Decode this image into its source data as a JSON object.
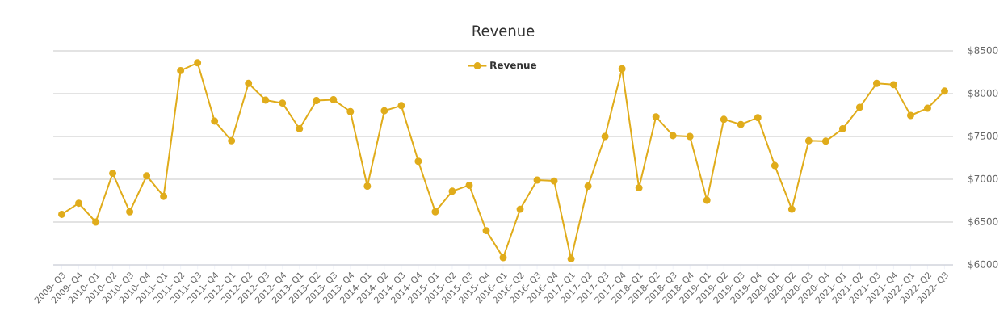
{
  "chart_data": {
    "type": "line",
    "title": "Revenue",
    "categories": [
      "2009- Q3",
      "2009- Q4",
      "2010- Q1",
      "2010- Q2",
      "2010- Q3",
      "2010- Q4",
      "2011- Q1",
      "2011- Q2",
      "2011- Q3",
      "2011- Q4",
      "2012- Q1",
      "2012- Q2",
      "2012- Q3",
      "2012- Q4",
      "2013- Q1",
      "2013- Q2",
      "2013- Q3",
      "2013- Q4",
      "2014- Q1",
      "2014- Q2",
      "2014- Q3",
      "2014- Q4",
      "2015- Q1",
      "2015- Q2",
      "2015- Q3",
      "2015- Q4",
      "2016- Q1",
      "2016- Q2",
      "2016- Q3",
      "2016- Q4",
      "2017- Q1",
      "2017- Q2",
      "2017- Q3",
      "2017- Q4",
      "2018- Q1",
      "2018- Q2",
      "2018- Q3",
      "2018- Q4",
      "2019- Q1",
      "2019- Q2",
      "2019- Q3",
      "2019- Q4",
      "2020- Q1",
      "2020- Q2",
      "2020- Q3",
      "2020- Q4",
      "2021- Q1",
      "2021- Q2",
      "2021- Q3",
      "2021- Q4",
      "2022- Q1",
      "2022- Q2",
      "2022- Q3"
    ],
    "series": [
      {
        "name": "Revenue",
        "color": "#e0ac1b",
        "values": [
          6590,
          6720,
          6500,
          7070,
          6620,
          7040,
          6800,
          8270,
          8360,
          7680,
          7450,
          8120,
          7925,
          7890,
          7590,
          7920,
          7930,
          7790,
          6920,
          7800,
          7860,
          7210,
          6620,
          6860,
          6930,
          6400,
          6085,
          6650,
          6990,
          6980,
          6070,
          6920,
          7500,
          8290,
          6900,
          7730,
          7510,
          7500,
          6755,
          7700,
          7640,
          7720,
          7160,
          6650,
          7450,
          7445,
          7590,
          7840,
          8120,
          8105,
          7745,
          7830,
          8030
        ]
      }
    ],
    "ylim": [
      6000,
      8500
    ],
    "yticks": [
      {
        "value": 6000,
        "label": "$6000"
      },
      {
        "value": 6500,
        "label": "$6500"
      },
      {
        "value": 7000,
        "label": "$7000"
      },
      {
        "value": 7500,
        "label": "$7500"
      },
      {
        "value": 8000,
        "label": "$8000"
      },
      {
        "value": 8500,
        "label": "$8500"
      }
    ],
    "grid": "y",
    "legend": "top",
    "marker": "circle",
    "line_style": "solid"
  }
}
